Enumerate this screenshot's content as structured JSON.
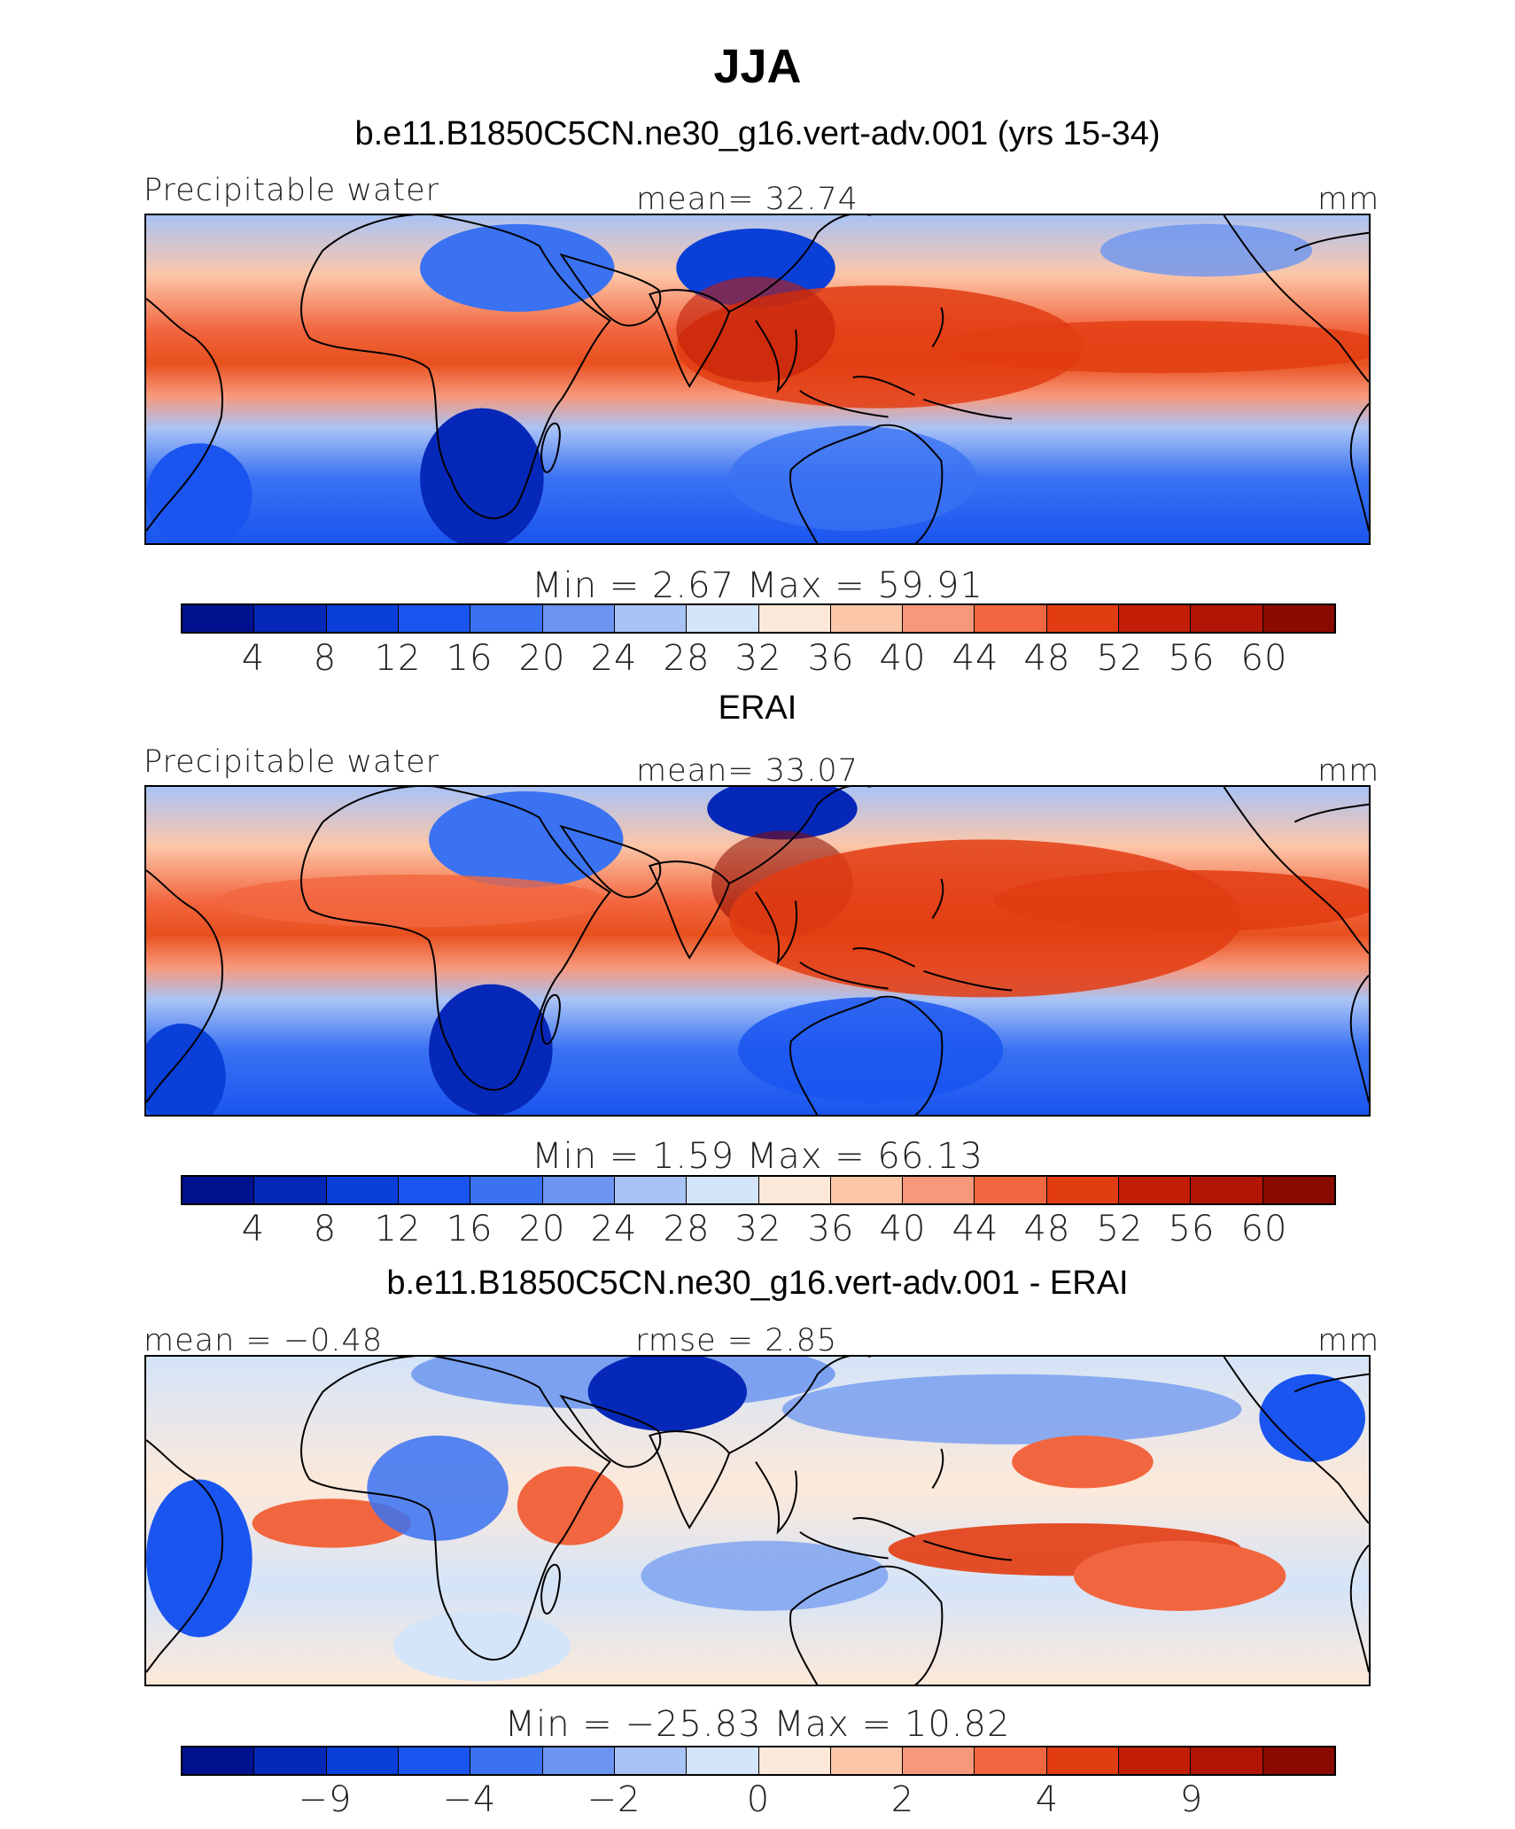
{
  "title": "JJA",
  "colors": {
    "palette": [
      "#00118f",
      "#0628b8",
      "#0a3fd8",
      "#1a55f0",
      "#3a72f2",
      "#6b95f0",
      "#a9c3f6",
      "#d4e4f9",
      "#fde9d9",
      "#fcc6a8",
      "#f8987a",
      "#f2663f",
      "#e23c12",
      "#c21e08",
      "#b01506",
      "#8b0a00"
    ]
  },
  "panels": [
    {
      "subtitle": "b.e11.B1850C5CN.ne30_g16.vert-adv.001 (yrs 15-34)",
      "left_label": "Precipitable water",
      "center_label": "mean=   32.74",
      "right_label": "mm",
      "min_max": "Min  =     2.67  Max  =    59.91",
      "tick_labels": [
        "4",
        "8",
        "12",
        "16",
        "20",
        "24",
        "28",
        "32",
        "36",
        "40",
        "44",
        "48",
        "52",
        "56",
        "60"
      ]
    },
    {
      "subtitle": "ERAI",
      "left_label": "Precipitable water",
      "center_label": "mean=   33.07",
      "right_label": "mm",
      "min_max": "Min  =     1.59  Max  =    66.13",
      "tick_labels": [
        "4",
        "8",
        "12",
        "16",
        "20",
        "24",
        "28",
        "32",
        "36",
        "40",
        "44",
        "48",
        "52",
        "56",
        "60"
      ]
    },
    {
      "subtitle": "b.e11.B1850C5CN.ne30_g16.vert-adv.001 - ERAI",
      "left_label": "mean =  −0.48",
      "center_label": "rmse  =    2.85",
      "right_label": "mm",
      "min_max": "Min  =  −25.83  Max  =    10.82",
      "tick_labels": [
        "−9",
        "−4",
        "−2",
        "0",
        "2",
        "4",
        "9"
      ]
    }
  ]
}
